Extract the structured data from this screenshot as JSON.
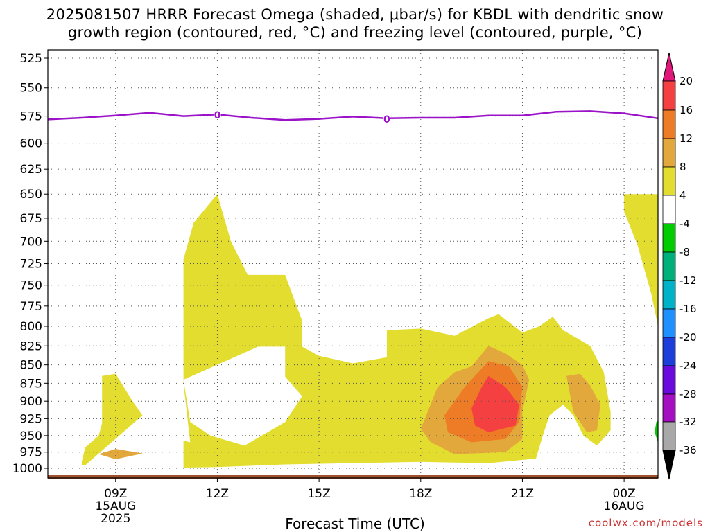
{
  "title": {
    "line1": "2025081507 HRRR Forecast Omega (shaded, μbar/s) for KBDL with dendritic snow",
    "line2": "growth region (contoured, red, °C) and freezing level (contoured, purple, °C)"
  },
  "credit": "coolwx.com/models",
  "chart_data": {
    "type": "contour",
    "xlabel": "Forecast Time (UTC)",
    "ylabel": "",
    "y_axis": {
      "ticks": [
        "525",
        "550",
        "575",
        "600",
        "625",
        "650",
        "675",
        "700",
        "725",
        "750",
        "775",
        "800",
        "825",
        "850",
        "875",
        "900",
        "925",
        "950",
        "975",
        "1000"
      ]
    },
    "x_axis": {
      "range_hours": [
        7,
        25
      ],
      "ticks": [
        {
          "hour": 9,
          "labels": [
            "09Z",
            "15AUG",
            "2025"
          ]
        },
        {
          "hour": 12,
          "labels": [
            "12Z"
          ]
        },
        {
          "hour": 15,
          "labels": [
            "15Z"
          ]
        },
        {
          "hour": 18,
          "labels": [
            "18Z"
          ]
        },
        {
          "hour": 21,
          "labels": [
            "21Z"
          ]
        },
        {
          "hour": 24,
          "labels": [
            "00Z",
            "16AUG"
          ]
        }
      ]
    },
    "grid": true,
    "colorbar": {
      "labels": [
        "20",
        "16",
        "12",
        "8",
        "4",
        "-4",
        "-8",
        "-12",
        "-16",
        "-20",
        "-24",
        "-28",
        "-32",
        "-36"
      ],
      "colors": {
        "top_arrow": "#e0187a",
        "20": "#f44040",
        "16": "#ee7b25",
        "12": "#e3a83b",
        "8": "#e3dd30",
        "4": "#ffffff",
        "-4": "#00cc00",
        "-8": "#00b07a",
        "-12": "#00b2c8",
        "-16": "#1e90ff",
        "-20": "#1c3edb",
        "-24": "#6a0adc",
        "-28": "#a40fc2",
        "-32": "#a8a8a8",
        "bottom_arrow": "#000000"
      }
    },
    "freezing_level": {
      "label": "0",
      "color": "#9b12c9",
      "points": [
        [
          7,
          578
        ],
        [
          8,
          576.5
        ],
        [
          9,
          574.5
        ],
        [
          10,
          572
        ],
        [
          11,
          575
        ],
        [
          12,
          573.5
        ],
        [
          13,
          576.5
        ],
        [
          14,
          578.5
        ],
        [
          15,
          577.5
        ],
        [
          16,
          575.5
        ],
        [
          17,
          577
        ],
        [
          18,
          576.5
        ],
        [
          19,
          576.5
        ],
        [
          20,
          574.5
        ],
        [
          21,
          574.5
        ],
        [
          22,
          571
        ],
        [
          23,
          570.5
        ],
        [
          24,
          572.5
        ],
        [
          25,
          577
        ]
      ],
      "label_hours": [
        12,
        17
      ]
    },
    "omega_shading": {
      "levels": [
        4,
        8,
        12,
        16,
        20
      ],
      "regions": [
        {
          "value": 4,
          "color": "#e3dd30",
          "desc": "main ascent area"
        },
        {
          "value": 8,
          "color": "#e3a83b"
        },
        {
          "value": 12,
          "color": "#ee7b25"
        },
        {
          "value": 16,
          "color": "#f44040"
        }
      ]
    },
    "ground_color": "#a0522d"
  }
}
